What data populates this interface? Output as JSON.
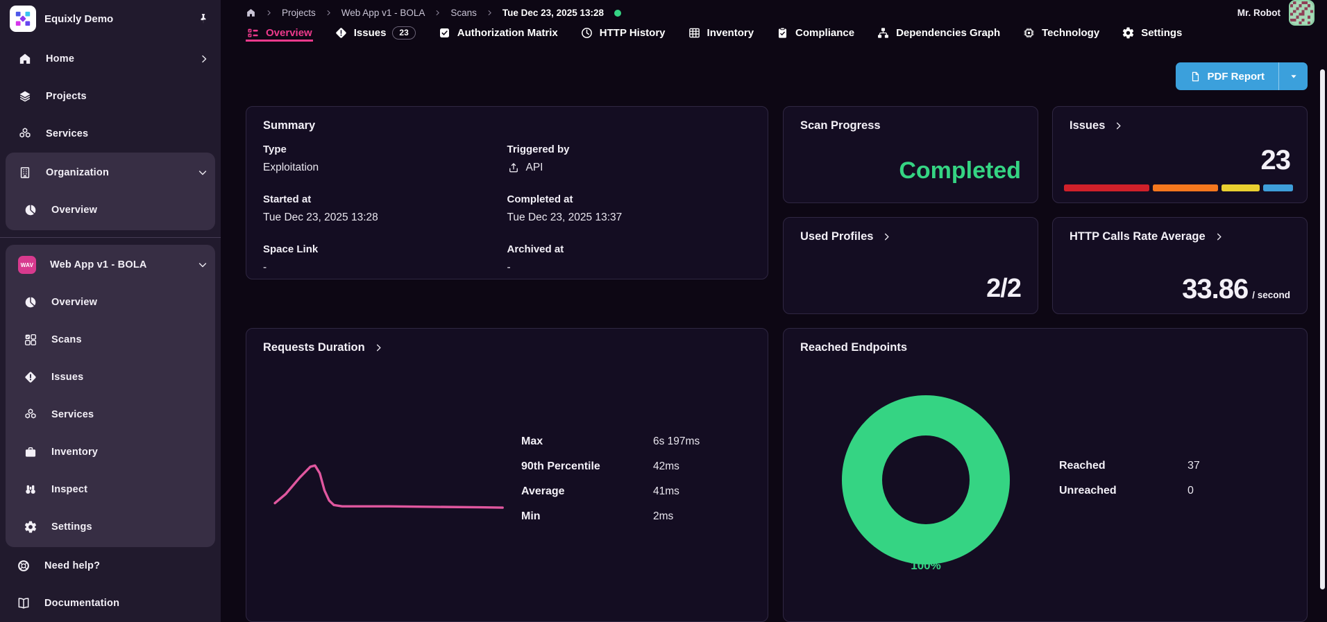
{
  "header": {
    "user_name": "Mr. Robot",
    "breadcrumb": {
      "items": [
        "Projects",
        "Web App v1 - BOLA",
        "Scans"
      ],
      "current": "Tue Dec 23, 2025 13:28",
      "status_color": "#35d483"
    }
  },
  "sidebar": {
    "brand": "Equixly Demo",
    "primary": [
      {
        "label": "Home",
        "icon": "home",
        "trailing": "chevron-right"
      },
      {
        "label": "Projects",
        "icon": "layers"
      },
      {
        "label": "Services",
        "icon": "cubes"
      }
    ],
    "groups": [
      {
        "header": {
          "label": "Organization",
          "icon": "building",
          "trailing": "chevron-down"
        },
        "items": [
          {
            "label": "Overview",
            "icon": "pie"
          }
        ]
      },
      {
        "header": {
          "label": "Web App v1 - BOLA",
          "icon": "wav-badge",
          "badge_text": "WAV",
          "trailing": "chevron-down"
        },
        "items": [
          {
            "label": "Overview",
            "icon": "pie"
          },
          {
            "label": "Scans",
            "icon": "scans"
          },
          {
            "label": "Issues",
            "icon": "issue"
          },
          {
            "label": "Services",
            "icon": "cubes"
          },
          {
            "label": "Inventory",
            "icon": "briefcase"
          },
          {
            "label": "Inspect",
            "icon": "binoculars"
          },
          {
            "label": "Settings",
            "icon": "gear"
          }
        ]
      }
    ],
    "footer": [
      {
        "label": "Need help?",
        "icon": "lifebuoy"
      },
      {
        "label": "Documentation",
        "icon": "book"
      }
    ]
  },
  "tabs": [
    {
      "label": "Overview",
      "icon": "checklist",
      "active": true
    },
    {
      "label": "Issues",
      "icon": "issue",
      "badge": "23"
    },
    {
      "label": "Authorization Matrix",
      "icon": "checkbox"
    },
    {
      "label": "HTTP History",
      "icon": "clock"
    },
    {
      "label": "Inventory",
      "icon": "table"
    },
    {
      "label": "Compliance",
      "icon": "clipboard"
    },
    {
      "label": "Dependencies Graph",
      "icon": "graph"
    },
    {
      "label": "Technology",
      "icon": "chip"
    },
    {
      "label": "Settings",
      "icon": "gear"
    }
  ],
  "toolbar": {
    "pdf_report_label": "PDF Report"
  },
  "cards": {
    "summary": {
      "title": "Summary",
      "fields": [
        {
          "label": "Type",
          "value": "Exploitation"
        },
        {
          "label": "Triggered by",
          "value": "API",
          "icon": "upload"
        },
        {
          "label": "Started at",
          "value": "Tue Dec 23, 2025 13:28"
        },
        {
          "label": "Completed at",
          "value": "Tue Dec 23, 2025 13:37"
        },
        {
          "label": "Space Link",
          "value": "-"
        },
        {
          "label": "Archived at",
          "value": "-"
        }
      ]
    },
    "scan_progress": {
      "title": "Scan Progress",
      "status": "Completed",
      "status_color": "#35d483"
    },
    "issues": {
      "title": "Issues",
      "count": "23",
      "severity_segments": [
        {
          "name": "critical",
          "color": "#d0202a",
          "fraction": 0.39
        },
        {
          "name": "high",
          "color": "#f5771e",
          "fraction": 0.3
        },
        {
          "name": "medium",
          "color": "#e9cf30",
          "fraction": 0.175
        },
        {
          "name": "low",
          "color": "#3e9ed9",
          "fraction": 0.135
        }
      ]
    },
    "used_profiles": {
      "title": "Used Profiles",
      "value": "2/2"
    },
    "http_rate": {
      "title": "HTTP Calls Rate Average",
      "value": "33.86",
      "unit": "/ second"
    },
    "requests_duration": {
      "title": "Requests Duration",
      "stats": [
        {
          "label": "Max",
          "value": "6s 197ms"
        },
        {
          "label": "90th Percentile",
          "value": "42ms"
        },
        {
          "label": "Average",
          "value": "41ms"
        },
        {
          "label": "Min",
          "value": "2ms"
        }
      ]
    },
    "reached_endpoints": {
      "title": "Reached Endpoints",
      "percent": "100%",
      "legend": [
        {
          "label": "Reached",
          "value": "37"
        },
        {
          "label": "Unreached",
          "value": "0"
        }
      ]
    }
  },
  "chart_data": [
    {
      "type": "line",
      "title": "Requests Duration",
      "color": "#e0579f",
      "points": [
        [
          1.5,
          80
        ],
        [
          6,
          66
        ],
        [
          12,
          40
        ],
        [
          16.5,
          23
        ],
        [
          18.5,
          21
        ],
        [
          20.5,
          33
        ],
        [
          22.5,
          60
        ],
        [
          24.5,
          76
        ],
        [
          26.5,
          83
        ],
        [
          30,
          85
        ],
        [
          38,
          85
        ],
        [
          50,
          85
        ],
        [
          62,
          85.5
        ],
        [
          75,
          86
        ],
        [
          88,
          86.5
        ],
        [
          98,
          87
        ]
      ],
      "stats": {
        "max": "6s 197ms",
        "p90": "42ms",
        "average": "41ms",
        "min": "2ms"
      }
    },
    {
      "type": "donut",
      "title": "Reached Endpoints",
      "series": [
        {
          "label": "Reached",
          "value": 37,
          "color": "#35d483"
        },
        {
          "label": "Unreached",
          "value": 0,
          "color": "#2a2238"
        }
      ],
      "center_label": "100%"
    }
  ]
}
